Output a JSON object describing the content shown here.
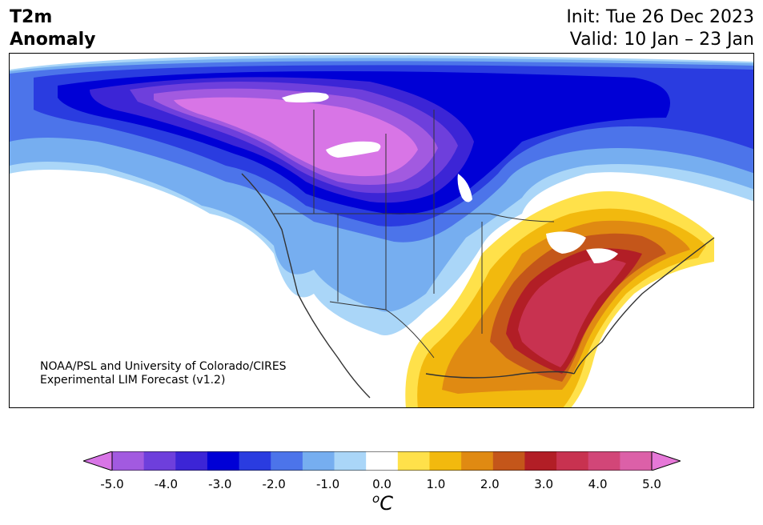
{
  "title": {
    "line1": "T2m",
    "line2": "Anomaly"
  },
  "init_text": "Init: Tue 26 Dec 2023",
  "valid_text": "Valid: 10 Jan – 23 Jan",
  "credit": {
    "line1": "NOAA/PSL and University of Colorado/CIRES",
    "line2": "Experimental LIM Forecast (v1.2)"
  },
  "colorbar": {
    "colors": [
      "#d875e6",
      "#a25ae0",
      "#6e3fdc",
      "#3c25d6",
      "#0000d6",
      "#2a3ce0",
      "#4c74ea",
      "#76aef0",
      "#aad6f8",
      "#ffffff",
      "#ffe14a",
      "#f2b90e",
      "#e08a12",
      "#c4561a",
      "#b21e26",
      "#c83250",
      "#d24678",
      "#dc60a8",
      "#e678d8"
    ],
    "tick_labels": [
      "-5.0",
      "-4.0",
      "-3.0",
      "-2.0",
      "-1.0",
      "0.0",
      "1.0",
      "2.0",
      "3.0",
      "4.0",
      "5.0"
    ],
    "unit_base": "C",
    "unit_sup": "o"
  }
}
